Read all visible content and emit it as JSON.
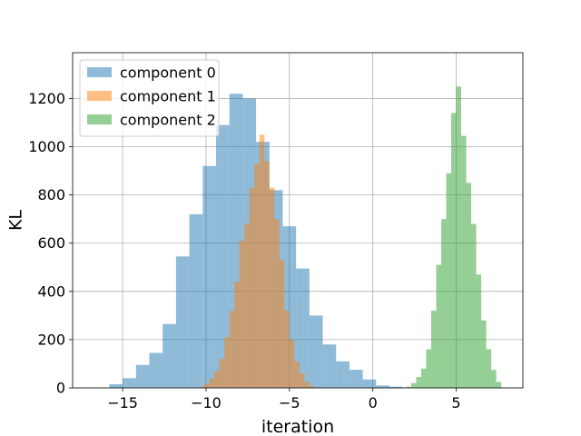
{
  "chart_data": {
    "type": "histogram",
    "xlabel": "iteration",
    "ylabel": "KL",
    "xlim": [
      -18,
      9
    ],
    "ylim": [
      0,
      1390
    ],
    "xticks": [
      -15,
      -10,
      -5,
      0,
      5
    ],
    "yticks": [
      0,
      200,
      400,
      600,
      800,
      1000,
      1200
    ],
    "grid": true,
    "legend_position": "top-left",
    "alpha": 0.5,
    "series": [
      {
        "name": "component 0",
        "color": "#1f77b4",
        "bins": [
          {
            "x0": -15.8,
            "x1": -15.0,
            "count": 15
          },
          {
            "x0": -15.0,
            "x1": -14.2,
            "count": 40
          },
          {
            "x0": -14.2,
            "x1": -13.4,
            "count": 95
          },
          {
            "x0": -13.4,
            "x1": -12.6,
            "count": 145
          },
          {
            "x0": -12.6,
            "x1": -11.8,
            "count": 265
          },
          {
            "x0": -11.8,
            "x1": -11.0,
            "count": 545
          },
          {
            "x0": -11.0,
            "x1": -10.2,
            "count": 720
          },
          {
            "x0": -10.2,
            "x1": -9.4,
            "count": 920
          },
          {
            "x0": -9.4,
            "x1": -8.6,
            "count": 1090
          },
          {
            "x0": -8.6,
            "x1": -7.8,
            "count": 1220
          },
          {
            "x0": -7.8,
            "x1": -7.0,
            "count": 1200
          },
          {
            "x0": -7.0,
            "x1": -6.2,
            "count": 1020
          },
          {
            "x0": -6.2,
            "x1": -5.4,
            "count": 820
          },
          {
            "x0": -5.4,
            "x1": -4.6,
            "count": 670
          },
          {
            "x0": -4.6,
            "x1": -3.8,
            "count": 495
          },
          {
            "x0": -3.8,
            "x1": -3.0,
            "count": 300
          },
          {
            "x0": -3.0,
            "x1": -2.2,
            "count": 180
          },
          {
            "x0": -2.2,
            "x1": -1.4,
            "count": 110
          },
          {
            "x0": -1.4,
            "x1": -0.6,
            "count": 75
          },
          {
            "x0": -0.6,
            "x1": 0.2,
            "count": 35
          },
          {
            "x0": 0.2,
            "x1": 1.0,
            "count": 10
          },
          {
            "x0": 1.0,
            "x1": 1.8,
            "count": 5
          }
        ]
      },
      {
        "name": "component 1",
        "color": "#ff7f0e",
        "bins": [
          {
            "x0": -10.4,
            "x1": -10.1,
            "count": 4
          },
          {
            "x0": -10.1,
            "x1": -9.8,
            "count": 18
          },
          {
            "x0": -9.8,
            "x1": -9.5,
            "count": 40
          },
          {
            "x0": -9.5,
            "x1": -9.2,
            "count": 70
          },
          {
            "x0": -9.2,
            "x1": -8.9,
            "count": 120
          },
          {
            "x0": -8.9,
            "x1": -8.6,
            "count": 210
          },
          {
            "x0": -8.6,
            "x1": -8.3,
            "count": 320
          },
          {
            "x0": -8.3,
            "x1": -8.0,
            "count": 440
          },
          {
            "x0": -8.0,
            "x1": -7.7,
            "count": 610
          },
          {
            "x0": -7.7,
            "x1": -7.4,
            "count": 680
          },
          {
            "x0": -7.4,
            "x1": -7.1,
            "count": 830
          },
          {
            "x0": -7.1,
            "x1": -6.8,
            "count": 930
          },
          {
            "x0": -6.8,
            "x1": -6.5,
            "count": 1050
          },
          {
            "x0": -6.5,
            "x1": -6.2,
            "count": 940
          },
          {
            "x0": -6.2,
            "x1": -5.9,
            "count": 830
          },
          {
            "x0": -5.9,
            "x1": -5.6,
            "count": 700
          },
          {
            "x0": -5.6,
            "x1": -5.3,
            "count": 530
          },
          {
            "x0": -5.3,
            "x1": -5.0,
            "count": 320
          },
          {
            "x0": -5.0,
            "x1": -4.7,
            "count": 200
          },
          {
            "x0": -4.7,
            "x1": -4.4,
            "count": 110
          },
          {
            "x0": -4.4,
            "x1": -4.1,
            "count": 60
          },
          {
            "x0": -4.1,
            "x1": -3.8,
            "count": 25
          },
          {
            "x0": -3.8,
            "x1": -3.5,
            "count": 8
          }
        ]
      },
      {
        "name": "component 2",
        "color": "#2ca02c",
        "bins": [
          {
            "x0": 2.0,
            "x1": 2.3,
            "count": 5
          },
          {
            "x0": 2.3,
            "x1": 2.6,
            "count": 20
          },
          {
            "x0": 2.6,
            "x1": 2.9,
            "count": 45
          },
          {
            "x0": 2.9,
            "x1": 3.2,
            "count": 80
          },
          {
            "x0": 3.2,
            "x1": 3.5,
            "count": 160
          },
          {
            "x0": 3.5,
            "x1": 3.8,
            "count": 320
          },
          {
            "x0": 3.8,
            "x1": 4.1,
            "count": 510
          },
          {
            "x0": 4.1,
            "x1": 4.4,
            "count": 700
          },
          {
            "x0": 4.4,
            "x1": 4.7,
            "count": 890
          },
          {
            "x0": 4.7,
            "x1": 5.0,
            "count": 1140
          },
          {
            "x0": 5.0,
            "x1": 5.3,
            "count": 1250
          },
          {
            "x0": 5.3,
            "x1": 5.6,
            "count": 1045
          },
          {
            "x0": 5.6,
            "x1": 5.9,
            "count": 850
          },
          {
            "x0": 5.9,
            "x1": 6.2,
            "count": 680
          },
          {
            "x0": 6.2,
            "x1": 6.5,
            "count": 470
          },
          {
            "x0": 6.5,
            "x1": 6.8,
            "count": 280
          },
          {
            "x0": 6.8,
            "x1": 7.1,
            "count": 160
          },
          {
            "x0": 7.1,
            "x1": 7.4,
            "count": 75
          },
          {
            "x0": 7.4,
            "x1": 7.7,
            "count": 25
          }
        ]
      }
    ]
  }
}
